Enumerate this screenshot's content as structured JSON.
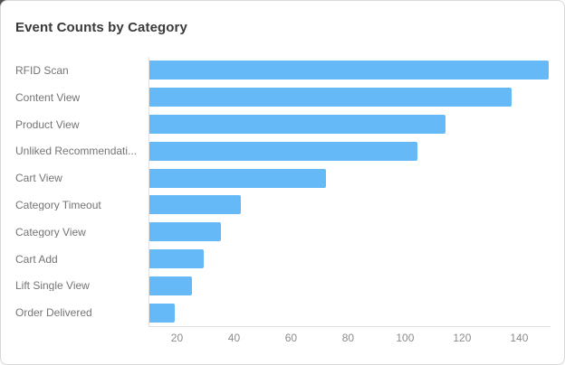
{
  "card": {
    "title": "Event Counts by Category"
  },
  "chart_data": {
    "type": "bar",
    "orientation": "horizontal",
    "title": "Event Counts by Category",
    "categories": [
      "RFID Scan",
      "Content View",
      "Product View",
      "Unliked Recommendati...",
      "Cart View",
      "Category Timeout",
      "Category View",
      "Cart Add",
      "Lift Single View",
      "Order Delivered"
    ],
    "values": [
      150,
      137,
      114,
      104,
      72,
      42,
      35,
      29,
      25,
      19
    ],
    "xlabel": "",
    "ylabel": "",
    "xticks": [
      20,
      40,
      60,
      80,
      100,
      120,
      140
    ],
    "xlim": [
      10,
      151
    ],
    "grid": false,
    "legend": false,
    "bar_color": "#64b9f6",
    "axis_color": "#e0e0e0",
    "category_label_color": "#757575",
    "tick_label_color": "#8c8c8c",
    "title_color": "#3a3a3a"
  }
}
